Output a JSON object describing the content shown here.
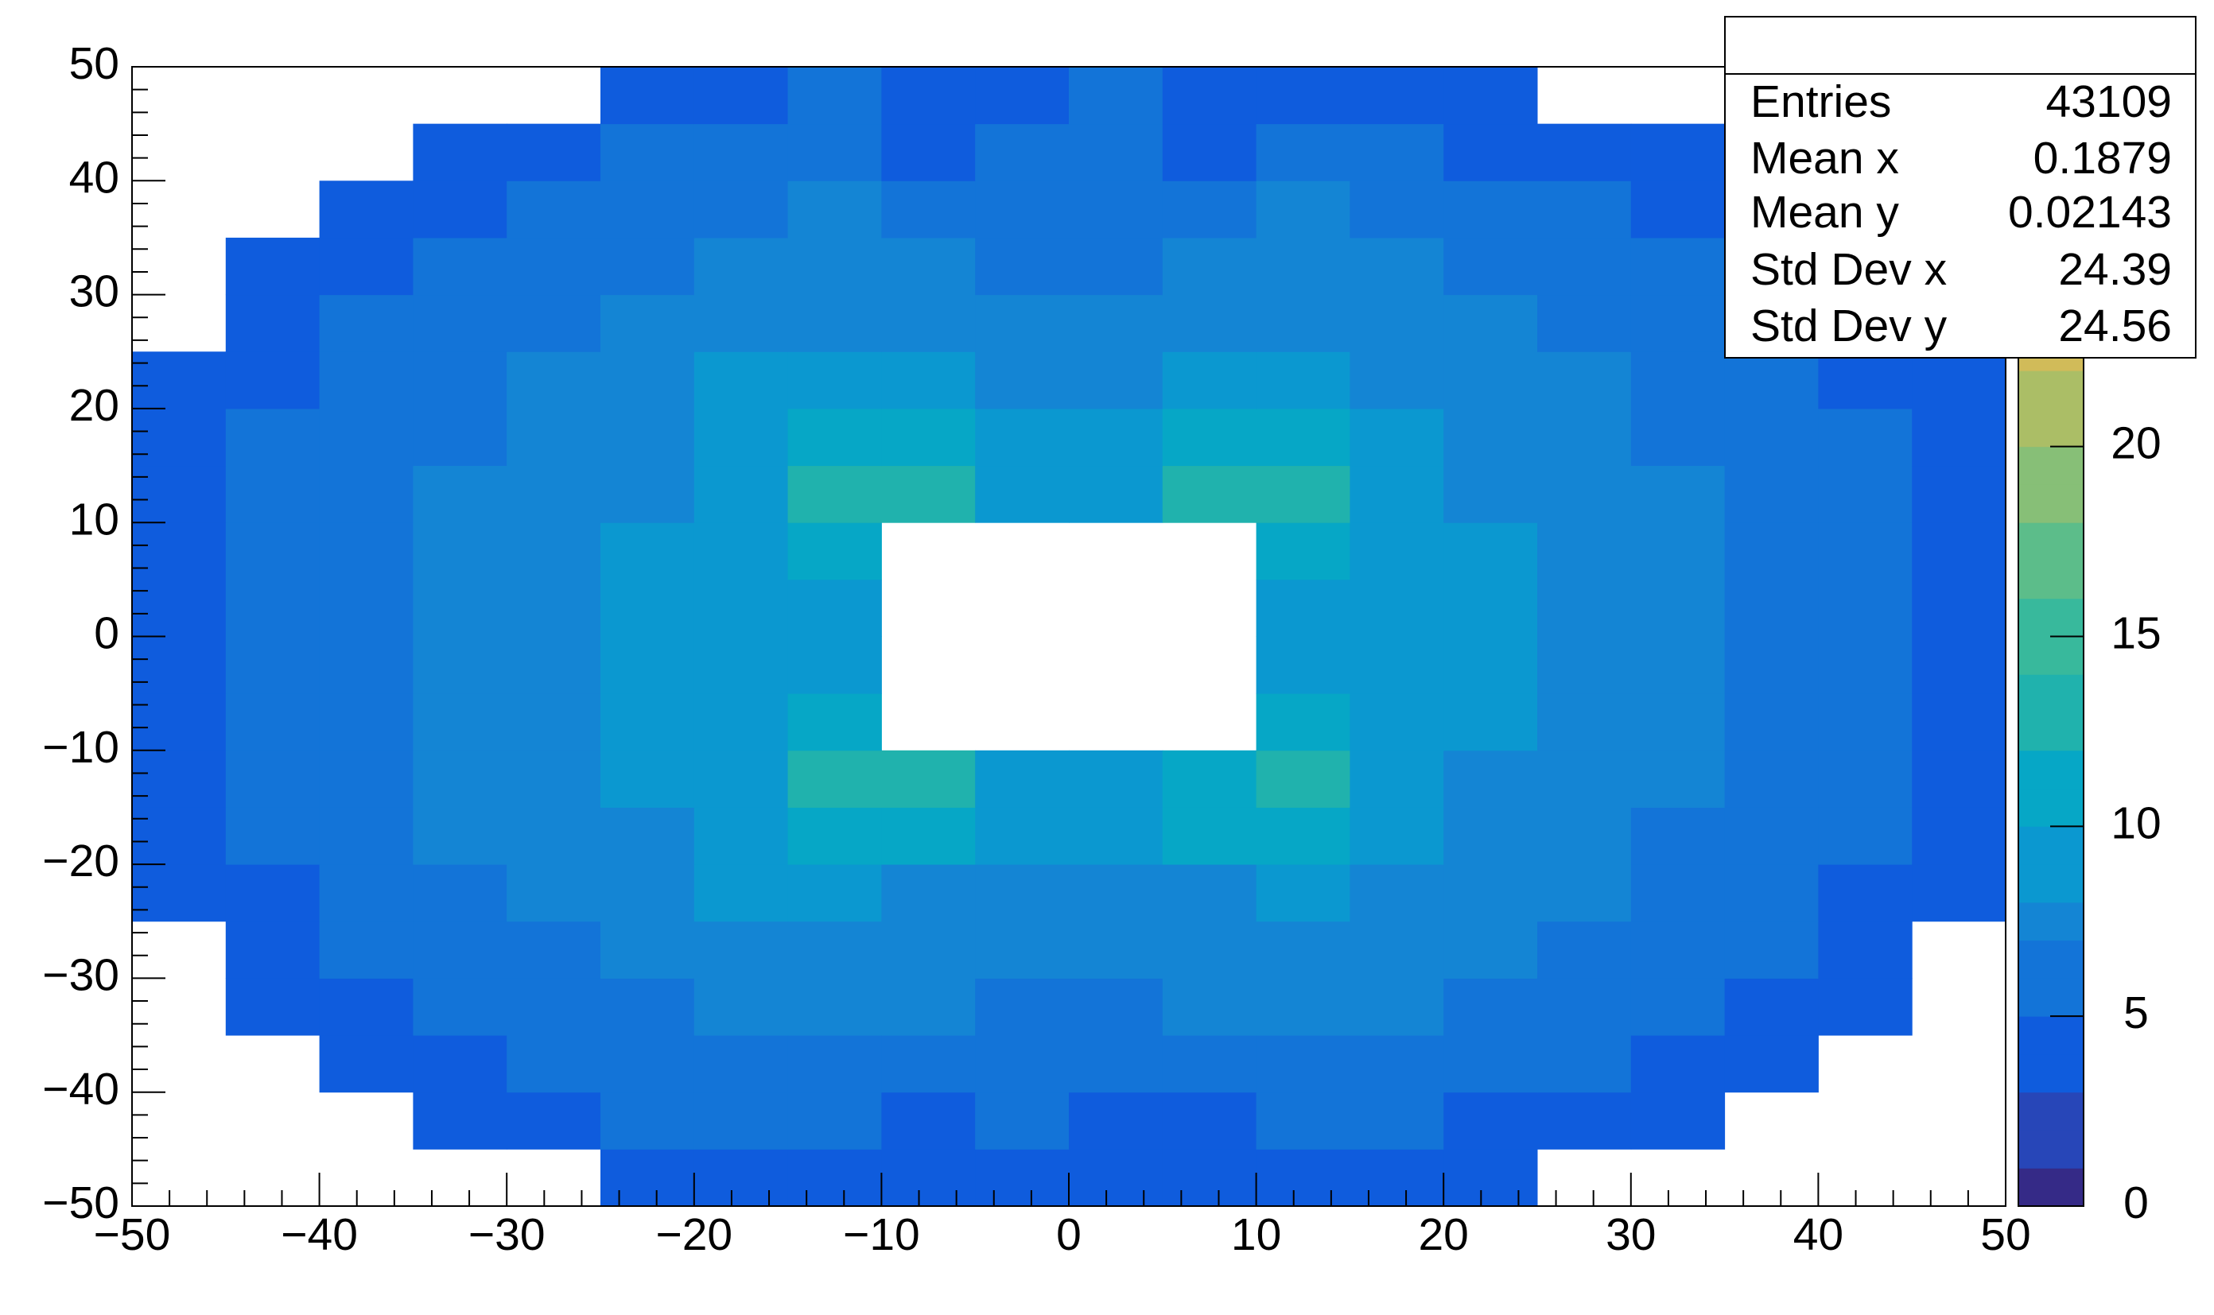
{
  "chart_data": {
    "type": "heatmap",
    "x_bins": [
      -50,
      -45,
      -40,
      -35,
      -30,
      -25,
      -20,
      -15,
      -10,
      -5,
      0,
      5,
      10,
      15,
      20,
      25,
      30,
      35,
      40,
      45,
      50
    ],
    "y_bins": [
      -50,
      -45,
      -40,
      -35,
      -30,
      -25,
      -20,
      -15,
      -10,
      -5,
      0,
      5,
      10,
      15,
      20,
      25,
      30,
      35,
      40,
      45,
      50
    ],
    "z": [
      [
        null,
        null,
        null,
        null,
        null,
        3,
        4,
        4,
        4,
        4,
        4,
        4,
        4,
        4,
        3,
        null,
        null,
        null,
        null,
        null
      ],
      [
        null,
        null,
        null,
        3,
        4,
        5,
        5,
        5,
        4,
        5,
        4,
        4,
        5,
        5,
        4,
        4,
        3,
        null,
        null,
        null
      ],
      [
        null,
        null,
        3,
        4,
        5,
        5,
        6,
        6,
        6,
        5,
        5,
        6,
        6,
        6,
        5,
        5,
        4,
        4,
        null,
        null
      ],
      [
        null,
        3,
        4,
        5,
        6,
        6,
        7,
        7,
        7,
        6,
        6,
        7,
        7,
        7,
        6,
        6,
        5,
        4,
        3,
        null
      ],
      [
        null,
        4,
        5,
        5,
        6,
        7,
        8,
        8,
        7,
        7,
        7,
        7,
        8,
        8,
        7,
        6,
        5,
        5,
        4,
        null
      ],
      [
        4,
        4,
        5,
        6,
        7,
        8,
        9,
        9,
        8,
        8,
        8,
        8,
        9,
        8,
        8,
        7,
        6,
        5,
        4,
        4
      ],
      [
        4,
        5,
        6,
        7,
        7,
        8,
        9,
        12,
        11,
        9,
        9,
        11,
        12,
        9,
        8,
        7,
        6,
        6,
        5,
        4
      ],
      [
        4,
        5,
        6,
        7,
        8,
        9,
        10,
        13,
        13,
        9,
        9,
        12,
        14,
        10,
        8,
        8,
        7,
        6,
        5,
        4
      ],
      [
        4,
        5,
        6,
        7,
        8,
        9,
        10,
        11,
        null,
        null,
        null,
        null,
        11,
        10,
        9,
        8,
        7,
        6,
        5,
        4
      ],
      [
        4,
        5,
        6,
        7,
        8,
        9,
        9,
        10,
        null,
        null,
        null,
        null,
        10,
        10,
        9,
        8,
        7,
        6,
        5,
        4
      ],
      [
        4,
        5,
        6,
        7,
        8,
        9,
        10,
        10,
        null,
        null,
        null,
        null,
        10,
        10,
        9,
        8,
        7,
        6,
        5,
        4
      ],
      [
        4,
        5,
        6,
        7,
        8,
        9,
        10,
        11,
        null,
        null,
        null,
        null,
        11,
        10,
        9,
        8,
        7,
        6,
        5,
        4
      ],
      [
        4,
        5,
        6,
        7,
        8,
        8,
        9,
        13,
        13,
        10,
        10,
        13,
        13,
        9,
        8,
        8,
        7,
        6,
        5,
        4
      ],
      [
        4,
        5,
        6,
        6,
        7,
        8,
        9,
        12,
        12,
        10,
        10,
        12,
        12,
        9,
        8,
        7,
        6,
        6,
        5,
        4
      ],
      [
        4,
        4,
        5,
        6,
        7,
        8,
        9,
        9,
        9,
        8,
        8,
        9,
        9,
        8,
        8,
        7,
        6,
        5,
        4,
        4
      ],
      [
        null,
        4,
        5,
        5,
        6,
        7,
        8,
        8,
        8,
        7,
        7,
        8,
        8,
        8,
        7,
        6,
        5,
        5,
        4,
        null
      ],
      [
        null,
        3,
        4,
        5,
        6,
        6,
        7,
        8,
        7,
        6,
        6,
        7,
        7,
        7,
        6,
        6,
        5,
        4,
        3,
        null
      ],
      [
        null,
        null,
        3,
        4,
        5,
        5,
        6,
        7,
        6,
        5,
        6,
        6,
        7,
        6,
        5,
        5,
        4,
        4,
        null,
        null
      ],
      [
        null,
        null,
        null,
        3,
        4,
        5,
        5,
        5,
        4,
        5,
        5,
        4,
        5,
        5,
        4,
        4,
        3,
        null,
        null,
        null
      ],
      [
        null,
        null,
        null,
        null,
        null,
        3,
        4,
        5,
        4,
        4,
        5,
        4,
        4,
        4,
        3,
        null,
        null,
        null,
        null,
        null
      ]
    ],
    "xlim": [
      -50,
      50
    ],
    "ylim": [
      -50,
      50
    ],
    "xticks": [
      {
        "value": -50,
        "label": "−50"
      },
      {
        "value": -40,
        "label": "−40"
      },
      {
        "value": -30,
        "label": "−30"
      },
      {
        "value": -20,
        "label": "−20"
      },
      {
        "value": -10,
        "label": "−10"
      },
      0,
      10,
      20,
      30,
      40,
      50
    ],
    "yticks": [
      {
        "value": -50,
        "label": "−50"
      },
      {
        "value": -40,
        "label": "−40"
      },
      {
        "value": -30,
        "label": "−30"
      },
      {
        "value": -20,
        "label": "−20"
      },
      {
        "value": -10,
        "label": "−10"
      },
      0,
      10,
      20,
      30,
      40,
      50
    ],
    "zlim": [
      0,
      30
    ],
    "zticks": [
      0,
      5,
      10,
      15,
      20
    ],
    "palette": [
      "#352a87",
      "#2746b8",
      "#0f5cdd",
      "#1374d8",
      "#1485d4",
      "#0b98d0",
      "#06a7c6",
      "#20b2ad",
      "#38b99c",
      "#5cbd8a",
      "#87bf77",
      "#abbe66",
      "#d1bb59",
      "#eebc44",
      "#fec832",
      "#f5dd23",
      "#f9fb0e"
    ],
    "stats": [
      {
        "label": "Entries",
        "value": 43109
      },
      {
        "label": "Mean x",
        "value": 0.1879
      },
      {
        "label": "Mean y",
        "value": 0.02143
      },
      {
        "label": "Std Dev x",
        "value": 24.39
      },
      {
        "label": "Std Dev y",
        "value": 24.56
      }
    ]
  }
}
